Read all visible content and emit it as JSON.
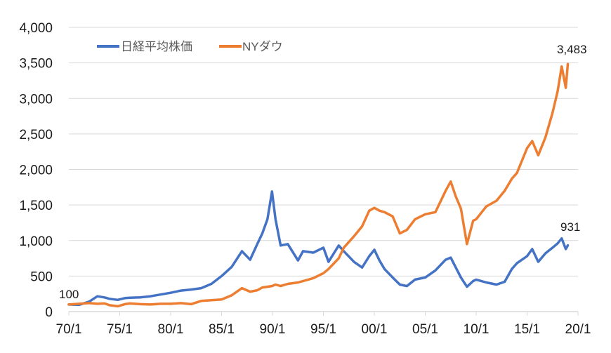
{
  "chart_data": {
    "type": "line",
    "title": "",
    "xlabel": "",
    "ylabel": "",
    "ylim": [
      0,
      4000
    ],
    "yticks": [
      0,
      500,
      1000,
      1500,
      2000,
      2500,
      3000,
      3500,
      4000
    ],
    "ytick_labels": [
      "0",
      "500",
      "1,000",
      "1,500",
      "2,000",
      "2,500",
      "3,000",
      "3,500",
      "4,000"
    ],
    "xticks": [
      "70/1",
      "75/1",
      "80/1",
      "85/1",
      "90/1",
      "95/1",
      "00/1",
      "05/1",
      "10/1",
      "15/1",
      "20/1"
    ],
    "xrange": [
      1970,
      2020
    ],
    "grid": true,
    "legend_position": "top-left",
    "x": [
      1970.0,
      1971.0,
      1972.0,
      1972.8,
      1973.5,
      1974.0,
      1974.8,
      1975.5,
      1976.0,
      1977.0,
      1978.0,
      1979.0,
      1980.0,
      1981.0,
      1982.0,
      1983.0,
      1984.0,
      1985.0,
      1986.0,
      1987.0,
      1987.8,
      1988.5,
      1989.0,
      1989.5,
      1989.95,
      1990.3,
      1990.8,
      1991.5,
      1992.5,
      1993.0,
      1994.0,
      1995.0,
      1995.5,
      1996.5,
      1997.0,
      1998.0,
      1998.8,
      1999.5,
      2000.0,
      2000.5,
      2001.0,
      2001.8,
      2002.5,
      2003.2,
      2004.0,
      2005.0,
      2006.0,
      2007.0,
      2007.5,
      2008.0,
      2008.5,
      2009.1,
      2009.7,
      2010.0,
      2011.0,
      2012.0,
      2012.8,
      2013.5,
      2014.0,
      2015.0,
      2015.5,
      2016.1,
      2016.8,
      2017.5,
      2018.0,
      2018.4,
      2018.8,
      2019.0
    ],
    "series": [
      {
        "name": "日経平均株価",
        "color": "#4472c4",
        "values": [
          100,
          95,
          140,
          215,
          200,
          180,
          165,
          190,
          195,
          200,
          215,
          240,
          265,
          295,
          310,
          330,
          390,
          500,
          630,
          850,
          730,
          950,
          1100,
          1300,
          1690,
          1300,
          930,
          950,
          720,
          850,
          830,
          900,
          700,
          930,
          850,
          700,
          620,
          780,
          870,
          720,
          600,
          480,
          380,
          360,
          450,
          480,
          580,
          730,
          760,
          620,
          480,
          350,
          430,
          450,
          410,
          380,
          420,
          600,
          680,
          780,
          880,
          700,
          820,
          900,
          960,
          1030,
          880,
          931
        ]
      },
      {
        "name": "NYダウ",
        "color": "#ed7d31",
        "values": [
          100,
          110,
          120,
          110,
          115,
          90,
          75,
          105,
          115,
          105,
          100,
          110,
          110,
          120,
          105,
          150,
          160,
          170,
          230,
          330,
          280,
          300,
          340,
          350,
          360,
          380,
          360,
          390,
          410,
          430,
          470,
          540,
          600,
          750,
          900,
          1060,
          1200,
          1420,
          1460,
          1420,
          1400,
          1340,
          1100,
          1150,
          1300,
          1370,
          1400,
          1700,
          1830,
          1620,
          1450,
          950,
          1280,
          1300,
          1480,
          1560,
          1700,
          1870,
          1950,
          2300,
          2400,
          2200,
          2450,
          2800,
          3100,
          3450,
          3150,
          3483
        ]
      }
    ],
    "annotations": [
      {
        "text": "100",
        "x": 1970.0,
        "y": 100
      },
      {
        "text": "3,483",
        "series": "NYダウ",
        "x": 2019.0,
        "y": 3483
      },
      {
        "text": "931",
        "series": "日経平均株価",
        "x": 2019.0,
        "y": 931
      }
    ]
  },
  "legend": {
    "items": [
      {
        "label": "日経平均株価",
        "color": "#4472c4"
      },
      {
        "label": "NYダウ",
        "color": "#ed7d31"
      }
    ]
  },
  "labels": {
    "start": "100",
    "dow_end": "3,483",
    "nikkei_end": "931"
  }
}
